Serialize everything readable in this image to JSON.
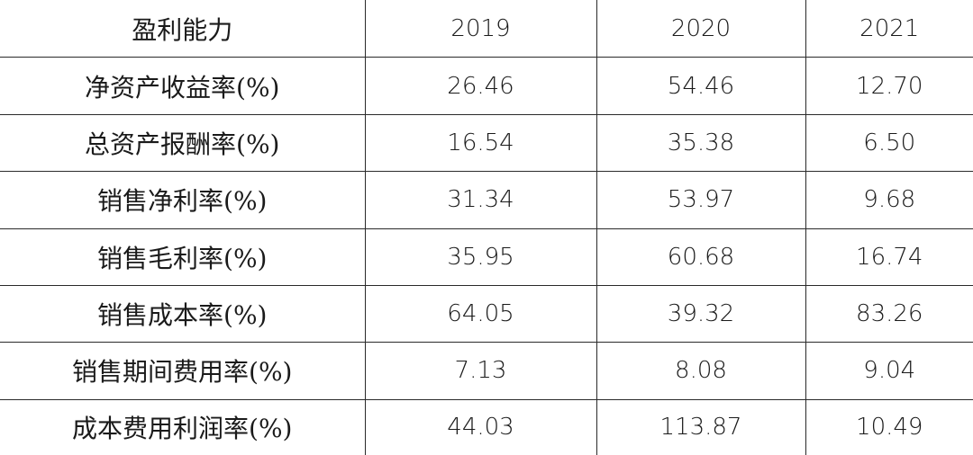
{
  "table": {
    "header": {
      "label": "盈利能力",
      "years": [
        "2019",
        "2020",
        "2021"
      ]
    },
    "rows": [
      {
        "label": "净资产收益率(%)",
        "values": [
          "26.46",
          "54.46",
          "12.70"
        ]
      },
      {
        "label": "总资产报酬率(%)",
        "values": [
          "16.54",
          "35.38",
          "6.50"
        ]
      },
      {
        "label": "销售净利率(%)",
        "values": [
          "31.34",
          "53.97",
          "9.68"
        ]
      },
      {
        "label": "销售毛利率(%)",
        "values": [
          "35.95",
          "60.68",
          "16.74"
        ]
      },
      {
        "label": "销售成本率(%)",
        "values": [
          "64.05",
          "39.32",
          "83.26"
        ]
      },
      {
        "label": "销售期间费用率(%)",
        "values": [
          "7.13",
          "8.08",
          "9.04"
        ]
      },
      {
        "label": "成本费用利润率(%)",
        "values": [
          "44.03",
          "113.87",
          "10.49"
        ]
      }
    ]
  }
}
